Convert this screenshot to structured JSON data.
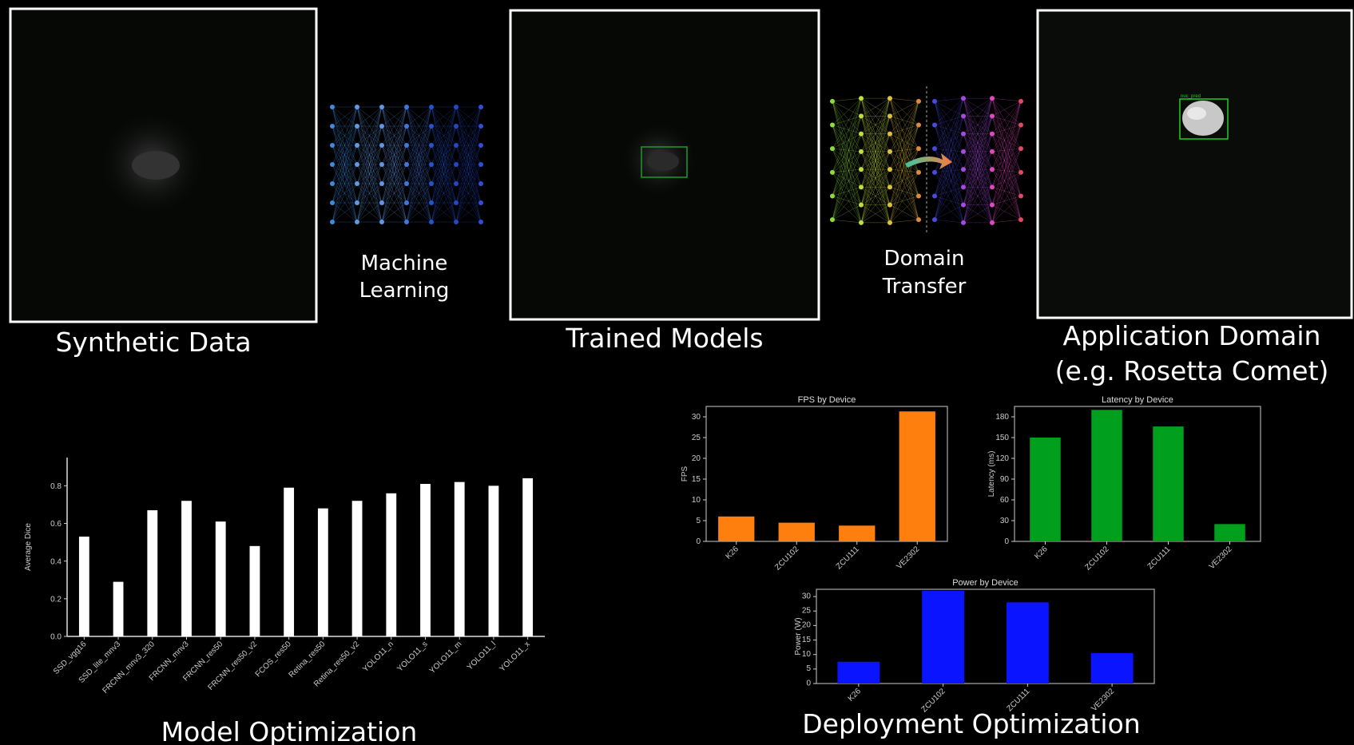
{
  "stages": {
    "synthetic": {
      "caption": "Synthetic Data"
    },
    "ml": {
      "caption_line1": "Machine",
      "caption_line2": "Learning"
    },
    "trained": {
      "caption": "Trained Models"
    },
    "transfer": {
      "caption_line1": "Domain",
      "caption_line2": "Transfer"
    },
    "application": {
      "caption_line1": "Application Domain",
      "caption_line2": "(e.g. Rosetta Comet)",
      "detection_label": "nuc_pred"
    }
  },
  "sections": {
    "model_opt": "Model Optimization",
    "deploy_opt": "Deployment Optimization"
  },
  "colors": {
    "detection_box": "#22cc22",
    "fps": "#ff7f0e",
    "latency": "#00a01e",
    "power": "#0a14ff",
    "dice": "#ffffff"
  },
  "chart_data": [
    {
      "type": "bar",
      "title": "",
      "xlabel": "",
      "ylabel": "Average Dice",
      "ylim": [
        0,
        0.95
      ],
      "yticks": [
        "0.0",
        "0.2",
        "0.4",
        "0.6",
        "0.8"
      ],
      "categories": [
        "SSD_vgg16",
        "SSD_lite_mnv3",
        "FRCNN_mnv3_320",
        "FRCNN_mnv3",
        "FRCNN_res50",
        "FRCNN_res50_v2",
        "FCOS_res50",
        "Retina_res50",
        "Retina_res50_v2",
        "YOLO11_n",
        "YOLO11_s",
        "YOLO11_m",
        "YOLO11_l",
        "YOLO11_x"
      ],
      "values": [
        0.53,
        0.29,
        0.67,
        0.72,
        0.61,
        0.48,
        0.79,
        0.68,
        0.72,
        0.76,
        0.81,
        0.82,
        0.8,
        0.84
      ]
    },
    {
      "type": "bar",
      "title": "FPS by Device",
      "ylabel": "FPS",
      "ylim": [
        0,
        32.5
      ],
      "yticks": [
        "0",
        "5",
        "10",
        "15",
        "20",
        "25",
        "30"
      ],
      "categories": [
        "K26",
        "ZCU102",
        "ZCU111",
        "VE2302"
      ],
      "values": [
        6.0,
        4.5,
        3.8,
        31.3
      ]
    },
    {
      "type": "bar",
      "title": "Latency by Device",
      "ylabel": "Latency (ms)",
      "ylim": [
        0,
        195
      ],
      "yticks": [
        "0",
        "30",
        "60",
        "90",
        "120",
        "150",
        "180"
      ],
      "categories": [
        "K26",
        "ZCU102",
        "ZCU111",
        "VE2302"
      ],
      "values": [
        150,
        190,
        166,
        25
      ]
    },
    {
      "type": "bar",
      "title": "Power by Device",
      "ylabel": "Power (W)",
      "ylim": [
        0,
        32.5
      ],
      "yticks": [
        "0",
        "5",
        "10",
        "15",
        "20",
        "25",
        "30"
      ],
      "categories": [
        "K26",
        "ZCU102",
        "ZCU111",
        "VE2302"
      ],
      "values": [
        7.5,
        32,
        28,
        10.5
      ]
    }
  ]
}
